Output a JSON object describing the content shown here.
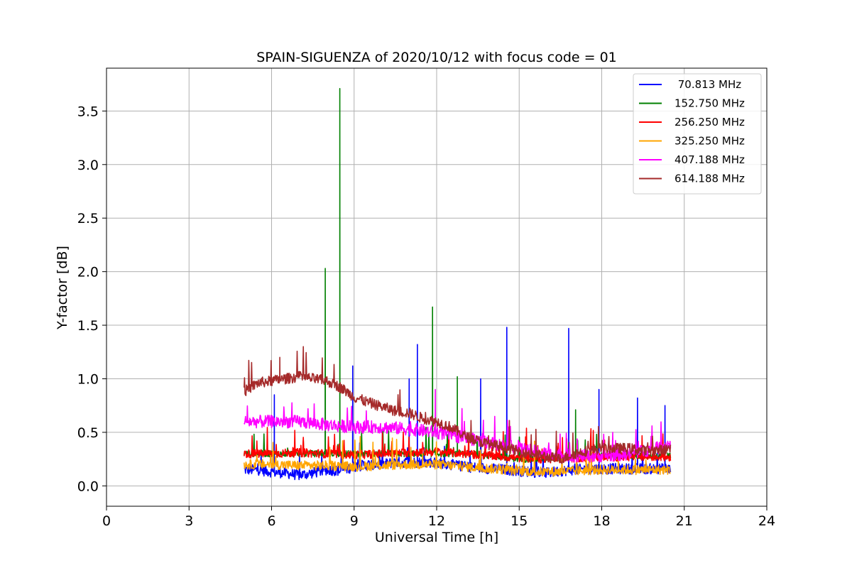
{
  "chart_data": {
    "type": "line",
    "title": "SPAIN-SIGUENZA of 2020/10/12 with focus code = 01",
    "xlabel": "Universal Time [h]",
    "ylabel": "Y-factor [dB]",
    "xlim": [
      0,
      24
    ],
    "ylim": [
      -0.19,
      3.9
    ],
    "xticks": [
      0,
      3,
      6,
      9,
      12,
      15,
      18,
      21,
      24
    ],
    "xtick_labels": [
      "0",
      "3",
      "6",
      "9",
      "12",
      "15",
      "18",
      "21",
      "24"
    ],
    "yticks": [
      0.0,
      0.5,
      1.0,
      1.5,
      2.0,
      2.5,
      3.0,
      3.5
    ],
    "ytick_labels": [
      "0.0",
      "0.5",
      "1.0",
      "1.5",
      "2.0",
      "2.5",
      "3.0",
      "3.5"
    ],
    "grid": true,
    "legend_position": "top-right",
    "series": [
      {
        "name": " 70.813 MHz",
        "color": "#0000ff",
        "x": [
          5.0,
          5.5,
          6.0,
          6.5,
          7.0,
          7.5,
          8.0,
          8.5,
          9.0,
          9.5,
          10.0,
          10.5,
          11.0,
          11.5,
          12.0,
          12.5,
          13.0,
          13.5,
          14.0,
          14.5,
          15.0,
          15.5,
          16.0,
          16.5,
          17.0,
          17.5,
          18.0,
          18.5,
          19.0,
          19.5,
          20.0,
          20.5
        ],
        "y": [
          0.15,
          0.15,
          0.13,
          0.12,
          0.1,
          0.12,
          0.15,
          0.14,
          0.18,
          0.2,
          0.2,
          0.22,
          0.22,
          0.22,
          0.22,
          0.2,
          0.18,
          0.17,
          0.16,
          0.15,
          0.14,
          0.13,
          0.12,
          0.14,
          0.15,
          0.16,
          0.16,
          0.16,
          0.16,
          0.16,
          0.16,
          0.16
        ],
        "spikes": [
          [
            6.1,
            0.85
          ],
          [
            8.95,
            1.12
          ],
          [
            11.0,
            1.0
          ],
          [
            11.3,
            1.32
          ],
          [
            13.6,
            1.0
          ],
          [
            14.55,
            1.48
          ],
          [
            16.8,
            1.47
          ],
          [
            17.9,
            0.9
          ],
          [
            19.3,
            0.82
          ],
          [
            20.3,
            0.75
          ]
        ]
      },
      {
        "name": "152.750 MHz",
        "color": "#008000",
        "x": [
          5.0,
          6.0,
          7.0,
          8.0,
          9.0,
          10.0,
          11.0,
          12.0,
          13.0,
          14.0,
          15.0,
          16.0,
          17.0,
          18.0,
          19.0,
          20.0,
          20.5
        ],
        "y": [
          0.3,
          0.3,
          0.3,
          0.3,
          0.3,
          0.3,
          0.3,
          0.3,
          0.3,
          0.28,
          0.25,
          0.25,
          0.27,
          0.28,
          0.28,
          0.28,
          0.28
        ],
        "spikes": [
          [
            7.95,
            2.03
          ],
          [
            8.48,
            3.71
          ],
          [
            11.85,
            1.67
          ],
          [
            12.75,
            1.02
          ],
          [
            17.05,
            0.71
          ]
        ]
      },
      {
        "name": "256.250 MHz",
        "color": "#ff0000",
        "x": [
          5.0,
          6.0,
          7.0,
          8.0,
          9.0,
          10.0,
          11.0,
          12.0,
          13.0,
          14.0,
          15.0,
          16.0,
          17.0,
          18.0,
          19.0,
          20.0,
          20.5
        ],
        "y": [
          0.3,
          0.3,
          0.31,
          0.3,
          0.29,
          0.3,
          0.31,
          0.32,
          0.3,
          0.28,
          0.26,
          0.25,
          0.26,
          0.27,
          0.27,
          0.27,
          0.27
        ],
        "spikes": []
      },
      {
        "name": "325.250 MHz",
        "color": "#ffa500",
        "x": [
          5.0,
          6.0,
          7.0,
          8.0,
          9.0,
          10.0,
          11.0,
          12.0,
          13.0,
          14.0,
          15.0,
          16.0,
          17.0,
          18.0,
          19.0,
          20.0,
          20.5
        ],
        "y": [
          0.2,
          0.2,
          0.19,
          0.19,
          0.18,
          0.19,
          0.2,
          0.2,
          0.18,
          0.16,
          0.14,
          0.13,
          0.14,
          0.15,
          0.15,
          0.15,
          0.15
        ],
        "spikes": []
      },
      {
        "name": "407.188 MHz",
        "color": "#ff00ff",
        "x": [
          5.0,
          6.0,
          7.0,
          8.0,
          9.0,
          10.0,
          11.0,
          12.0,
          13.0,
          14.0,
          15.0,
          16.0,
          17.0,
          18.0,
          19.0,
          20.0,
          20.5
        ],
        "y": [
          0.6,
          0.6,
          0.6,
          0.57,
          0.55,
          0.55,
          0.53,
          0.5,
          0.45,
          0.4,
          0.35,
          0.3,
          0.28,
          0.28,
          0.3,
          0.35,
          0.4
        ],
        "spikes": [
          [
            11.95,
            0.9
          ]
        ]
      },
      {
        "name": "614.188 MHz",
        "color": "#a52a2a",
        "x": [
          5.0,
          5.5,
          6.0,
          6.5,
          7.0,
          7.5,
          8.0,
          8.5,
          9.0,
          9.5,
          10.0,
          10.5,
          11.0,
          11.5,
          12.0,
          12.5,
          13.0,
          13.5,
          14.0,
          14.5,
          15.0,
          15.5,
          16.0,
          16.5,
          17.0,
          17.5,
          18.0,
          18.5,
          19.0,
          19.5,
          20.0,
          20.5
        ],
        "y": [
          0.88,
          0.96,
          0.98,
          1.0,
          1.02,
          1.0,
          0.98,
          0.92,
          0.83,
          0.78,
          0.74,
          0.7,
          0.68,
          0.63,
          0.6,
          0.55,
          0.47,
          0.42,
          0.38,
          0.36,
          0.32,
          0.3,
          0.27,
          0.25,
          0.3,
          0.33,
          0.35,
          0.35,
          0.35,
          0.33,
          0.33,
          0.35
        ],
        "spikes": [
          [
            6.3,
            1.2
          ]
        ]
      }
    ]
  }
}
